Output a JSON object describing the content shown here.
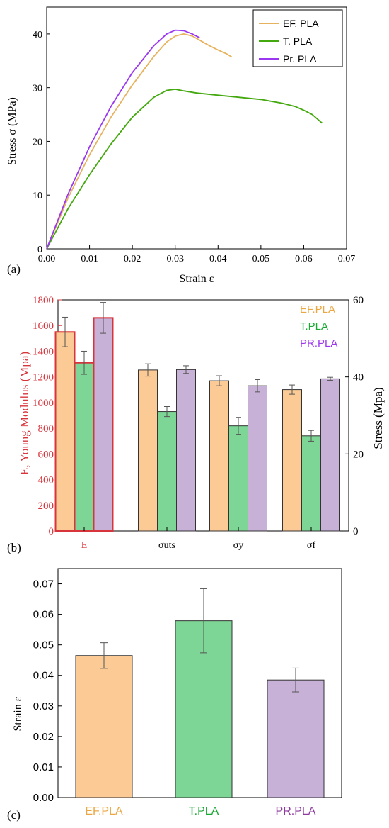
{
  "chart_data": [
    {
      "panel": "(a)",
      "type": "line",
      "xlabel": "Strain ε",
      "ylabel": "Stress σ (MPa)",
      "xlim": [
        0,
        0.07
      ],
      "ylim": [
        0,
        45
      ],
      "x_ticks": [
        "0.00",
        "0.01",
        "0.02",
        "0.03",
        "0.04",
        "0.05",
        "0.06",
        "0.07"
      ],
      "y_ticks": [
        "0",
        "10",
        "20",
        "30",
        "40"
      ],
      "legend_position": "top-right",
      "series": [
        {
          "name": "EF. PLA",
          "color": "#e7b25e",
          "x": [
            0,
            0.005,
            0.01,
            0.015,
            0.02,
            0.025,
            0.028,
            0.03,
            0.032,
            0.034,
            0.036,
            0.038,
            0.04,
            0.042,
            0.0432
          ],
          "y": [
            0,
            9.5,
            17.5,
            24.5,
            30.5,
            35.8,
            38.5,
            39.6,
            40.0,
            39.6,
            38.7,
            37.8,
            37.0,
            36.3,
            35.7
          ]
        },
        {
          "name": "T. PLA",
          "color": "#44a80f",
          "x": [
            0,
            0.005,
            0.01,
            0.015,
            0.02,
            0.025,
            0.028,
            0.03,
            0.032,
            0.035,
            0.04,
            0.045,
            0.05,
            0.055,
            0.058,
            0.06,
            0.062,
            0.0643
          ],
          "y": [
            0,
            7.5,
            13.8,
            19.5,
            24.5,
            28.2,
            29.5,
            29.7,
            29.4,
            29.0,
            28.6,
            28.2,
            27.8,
            27.1,
            26.5,
            25.8,
            25.0,
            23.4
          ]
        },
        {
          "name": "Pr. PLA",
          "color": "#9b37f0",
          "x": [
            0,
            0.005,
            0.01,
            0.015,
            0.02,
            0.025,
            0.028,
            0.03,
            0.032,
            0.034,
            0.0357
          ],
          "y": [
            0,
            10.2,
            19.0,
            26.5,
            32.8,
            37.8,
            40.0,
            40.7,
            40.6,
            40.0,
            39.3
          ]
        }
      ]
    },
    {
      "panel": "(b)",
      "type": "bar",
      "categories": [
        "E",
        "σuts",
        "σy",
        "σf"
      ],
      "ylabel_left": "E, Young Modulus (Mpa)",
      "ylabel_right": "Stress (Mpa)",
      "ylim_left": [
        0,
        1800
      ],
      "ylim_right": [
        0,
        60
      ],
      "y_ticks_left": [
        "0",
        "200",
        "400",
        "600",
        "800",
        "1000",
        "1200",
        "1400",
        "1600",
        "1800"
      ],
      "y_ticks_right": [
        "0",
        "20",
        "40",
        "60"
      ],
      "legend_position": "top-right",
      "series": [
        {
          "name": "EF.PLA",
          "color": "#fcca95",
          "text_color": "#eaa844",
          "values": [
            1550,
            41.8,
            39.0,
            36.7
          ],
          "errors": [
            115,
            1.6,
            1.3,
            1.2
          ]
        },
        {
          "name": "T.PLA",
          "color": "#7dd695",
          "text_color": "#1aa834",
          "values": [
            1310,
            31.0,
            27.3,
            24.7
          ],
          "errors": [
            90,
            1.3,
            2.2,
            1.4
          ]
        },
        {
          "name": "PR.PLA",
          "color": "#c7b1d7",
          "text_color": "#9b37f0",
          "values": [
            1660,
            41.9,
            37.7,
            39.5
          ],
          "errors": [
            120,
            1.0,
            1.6,
            0.4
          ]
        }
      ],
      "e_axis": "left",
      "stress_axis": "right"
    },
    {
      "panel": "(c)",
      "type": "bar",
      "categories": [
        "EF.PLA",
        "T.PLA",
        "PR.PLA"
      ],
      "category_colors": [
        "#eaa844",
        "#1aa834",
        "#8e3aa0"
      ],
      "bar_colors": [
        "#fcca95",
        "#7dd695",
        "#c7b1d7"
      ],
      "values": [
        0.0465,
        0.0579,
        0.0385
      ],
      "errors": [
        0.0042,
        0.0105,
        0.0039
      ],
      "ylabel": "Strain ε",
      "ylim": [
        0,
        0.075
      ],
      "y_ticks": [
        "0.00",
        "0.01",
        "0.02",
        "0.03",
        "0.04",
        "0.05",
        "0.06",
        "0.07"
      ]
    }
  ]
}
